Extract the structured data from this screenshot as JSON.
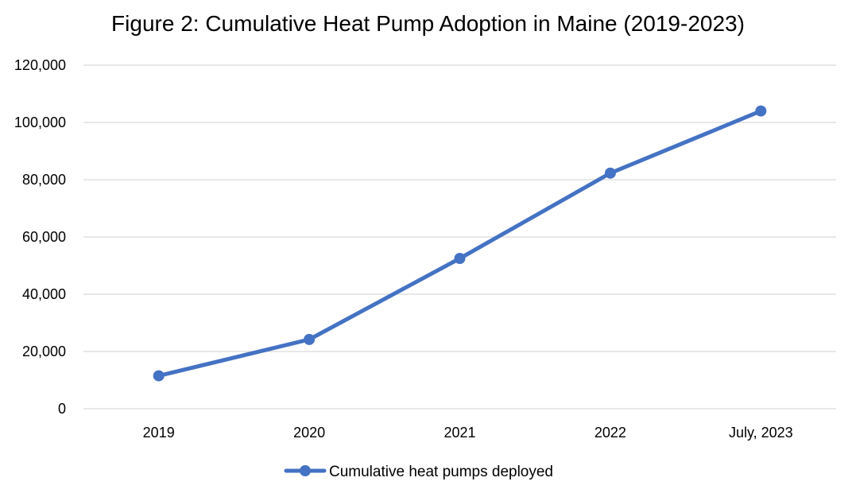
{
  "chart_data": {
    "type": "line",
    "title": "Figure 2: Cumulative Heat Pump Adoption in Maine (2019-2023)",
    "categories": [
      "2019",
      "2020",
      "2021",
      "2022",
      "July, 2023"
    ],
    "series": [
      {
        "name": "Cumulative heat pumps deployed",
        "values": [
          11500,
          24200,
          52500,
          82300,
          104000
        ],
        "color": "#4472C4"
      }
    ],
    "ylim": [
      0,
      120000
    ],
    "yticks": [
      0,
      20000,
      40000,
      60000,
      80000,
      100000,
      120000
    ],
    "ytick_labels": [
      "0",
      "20,000",
      "40,000",
      "60,000",
      "80,000",
      "100,000",
      "120,000"
    ],
    "grid": true,
    "gridColor": "#d9d9d9",
    "legend_position": "bottom"
  }
}
